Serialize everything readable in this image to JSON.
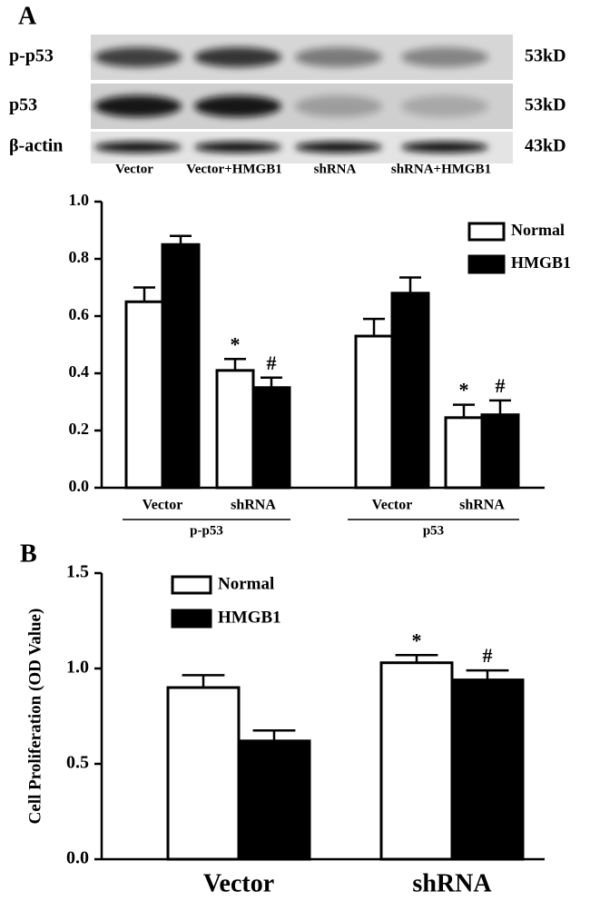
{
  "blot": {
    "panel_label": "A",
    "rows": [
      {
        "label": "p-p53",
        "size": "53kD"
      },
      {
        "label": "p53",
        "size": "53kD"
      },
      {
        "label": "β-actin",
        "size": "43kD"
      }
    ],
    "lanes": [
      "Vector",
      "Vector+HMGB1",
      "shRNA",
      "shRNA+HMGB1"
    ]
  },
  "chart_data": [
    {
      "type": "bar",
      "categories": [
        "Vector",
        "shRNA",
        "Vector",
        "shRNA"
      ],
      "groups": [
        "p-p53",
        "p53"
      ],
      "series": [
        {
          "name": "Normal",
          "color": "#ffffff",
          "values": [
            0.65,
            0.41,
            0.53,
            0.245
          ],
          "errors": [
            0.05,
            0.04,
            0.06,
            0.045
          ],
          "markers": [
            null,
            "*",
            null,
            "*"
          ]
        },
        {
          "name": "HMGB1",
          "color": "#000000",
          "values": [
            0.85,
            0.35,
            0.68,
            0.255
          ],
          "errors": [
            0.03,
            0.035,
            0.055,
            0.05
          ],
          "markers": [
            null,
            "#",
            null,
            "#"
          ]
        }
      ],
      "ylim": [
        0,
        1.0
      ],
      "yticks": [
        {
          "value": 0,
          "label": "0.0"
        },
        0.2,
        0.4,
        0.6,
        0.8,
        {
          "value": 1.0,
          "label": "1.0"
        }
      ],
      "legend": "upper right"
    },
    {
      "type": "bar",
      "panel_label": "B",
      "y_label": "Cell Proliferation (OD Value)",
      "categories": [
        "Vector",
        "shRNA"
      ],
      "series": [
        {
          "name": "Normal",
          "color": "#ffffff",
          "values": [
            0.9,
            1.03
          ],
          "errors": [
            0.065,
            0.04
          ],
          "markers": [
            null,
            "*"
          ]
        },
        {
          "name": "HMGB1",
          "color": "#000000",
          "values": [
            0.62,
            0.94
          ],
          "errors": [
            0.055,
            0.05
          ],
          "markers": [
            null,
            "#"
          ]
        }
      ],
      "ylim": [
        0,
        1.5
      ],
      "yticks": [
        {
          "value": 0,
          "label": "0.0"
        },
        0.5,
        {
          "value": 1.0,
          "label": "1.0"
        },
        1.5
      ],
      "legend": "upper left"
    }
  ]
}
